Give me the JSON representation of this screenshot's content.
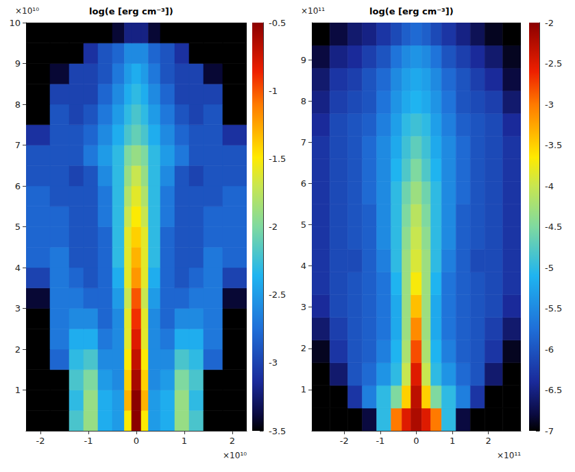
{
  "chart_data": [
    {
      "type": "heatmap",
      "title": "log(e [erg cm⁻³])",
      "x_multiplier": "×10¹⁰",
      "y_multiplier": "×10¹⁰",
      "xlim": [
        -2.3,
        2.3
      ],
      "xticks": [
        -2,
        -1,
        0,
        1,
        2
      ],
      "ylim": [
        0,
        10
      ],
      "yticks": [
        1,
        2,
        3,
        4,
        5,
        6,
        7,
        8,
        9,
        10
      ],
      "x_bins": [
        -2.3,
        -1.8,
        -1.4,
        -1.1,
        -0.8,
        -0.5,
        -0.25,
        -0.1,
        0.1,
        0.25,
        0.5,
        0.8,
        1.1,
        1.4,
        1.8,
        2.3
      ],
      "y_bins": [
        0,
        0.5,
        1,
        1.5,
        2,
        2.5,
        3,
        3.5,
        4,
        4.5,
        5,
        5.5,
        6,
        6.5,
        7,
        7.5,
        8,
        8.5,
        9,
        9.5,
        10
      ],
      "cells": [
        [
          -3.5,
          -3.5,
          -2.2,
          -1.9,
          -2.4,
          -2.5,
          -1.5,
          -0.5,
          -1.5,
          -2.5,
          -2.4,
          -1.9,
          -2.2,
          -3.5,
          -3.5
        ],
        [
          -3.5,
          -3.5,
          -2.3,
          -1.9,
          -2.4,
          -2.5,
          -1.3,
          -0.5,
          -1.3,
          -2.5,
          -2.4,
          -1.9,
          -2.3,
          -3.5,
          -3.5
        ],
        [
          -3.5,
          -3.5,
          -2.2,
          -2.0,
          -2.5,
          -2.6,
          -1.4,
          -0.6,
          -1.4,
          -2.6,
          -2.5,
          -2.0,
          -2.2,
          -3.5,
          -3.5
        ],
        [
          -3.5,
          -2.8,
          -2.3,
          -2.2,
          -2.6,
          -2.6,
          -1.5,
          -0.7,
          -1.5,
          -2.6,
          -2.6,
          -2.2,
          -2.3,
          -2.8,
          -3.5
        ],
        [
          -3.5,
          -2.7,
          -2.4,
          -2.4,
          -2.7,
          -2.6,
          -1.6,
          -0.8,
          -1.6,
          -2.6,
          -2.7,
          -2.4,
          -2.4,
          -2.7,
          -3.5
        ],
        [
          -3.5,
          -2.7,
          -2.6,
          -2.6,
          -2.8,
          -2.6,
          -1.6,
          -0.9,
          -1.6,
          -2.6,
          -2.8,
          -2.6,
          -2.6,
          -2.7,
          -3.5
        ],
        [
          -3.4,
          -2.7,
          -2.7,
          -2.8,
          -2.8,
          -2.5,
          -1.7,
          -1.0,
          -1.7,
          -2.5,
          -2.8,
          -2.8,
          -2.7,
          -2.7,
          -3.4
        ],
        [
          -3.0,
          -2.7,
          -2.8,
          -2.9,
          -2.8,
          -2.4,
          -1.6,
          -1.2,
          -1.6,
          -2.4,
          -2.8,
          -2.9,
          -2.8,
          -2.7,
          -3.0
        ],
        [
          -2.8,
          -2.7,
          -2.9,
          -2.9,
          -2.8,
          -2.3,
          -1.6,
          -1.3,
          -1.6,
          -2.3,
          -2.8,
          -2.9,
          -2.9,
          -2.7,
          -2.8
        ],
        [
          -2.8,
          -2.8,
          -2.9,
          -2.9,
          -2.8,
          -2.3,
          -1.6,
          -1.4,
          -1.6,
          -2.3,
          -2.8,
          -2.9,
          -2.9,
          -2.8,
          -2.8
        ],
        [
          -2.8,
          -2.8,
          -2.9,
          -2.9,
          -2.7,
          -2.3,
          -1.7,
          -1.5,
          -1.7,
          -2.3,
          -2.7,
          -2.9,
          -2.9,
          -2.8,
          -2.8
        ],
        [
          -2.8,
          -2.9,
          -2.9,
          -2.9,
          -2.7,
          -2.3,
          -1.8,
          -1.6,
          -1.8,
          -2.3,
          -2.7,
          -2.9,
          -2.9,
          -2.9,
          -2.8
        ],
        [
          -2.9,
          -2.9,
          -3.0,
          -2.9,
          -2.6,
          -2.3,
          -1.9,
          -1.7,
          -1.9,
          -2.3,
          -2.6,
          -2.9,
          -3.0,
          -2.9,
          -2.9
        ],
        [
          -2.9,
          -2.9,
          -2.9,
          -2.7,
          -2.5,
          -2.3,
          -2.0,
          -1.9,
          -2.0,
          -2.3,
          -2.5,
          -2.7,
          -2.9,
          -2.9,
          -2.9
        ],
        [
          -3.1,
          -2.9,
          -2.9,
          -2.8,
          -2.6,
          -2.4,
          -2.2,
          -2.1,
          -2.2,
          -2.4,
          -2.6,
          -2.8,
          -2.9,
          -2.9,
          -3.1
        ],
        [
          -3.5,
          -2.9,
          -3.0,
          -2.9,
          -2.7,
          -2.5,
          -2.3,
          -2.2,
          -2.3,
          -2.5,
          -2.7,
          -2.9,
          -3.0,
          -2.9,
          -3.5
        ],
        [
          -3.5,
          -3.0,
          -3.0,
          -3.0,
          -2.8,
          -2.6,
          -2.4,
          -2.3,
          -2.4,
          -2.6,
          -2.8,
          -3.0,
          -3.0,
          -3.0,
          -3.5
        ],
        [
          -3.5,
          -3.4,
          -3.0,
          -3.0,
          -2.9,
          -2.7,
          -2.5,
          -2.4,
          -2.5,
          -2.7,
          -2.9,
          -3.0,
          -3.0,
          -3.4,
          -3.5
        ],
        [
          -3.5,
          -3.5,
          -3.5,
          -3.1,
          -2.9,
          -2.8,
          -2.6,
          -2.6,
          -2.6,
          -2.8,
          -2.9,
          -3.1,
          -3.5,
          -3.5,
          -3.5
        ],
        [
          -3.5,
          -3.5,
          -3.5,
          -3.5,
          -3.5,
          -3.4,
          -3.2,
          -3.2,
          -3.2,
          -3.4,
          -3.5,
          -3.5,
          -3.5,
          -3.5,
          -3.5
        ]
      ],
      "colorbar_range": [
        -3.5,
        -0.5
      ],
      "colorbar_ticks": [
        -3.5,
        -3,
        -2.5,
        -2,
        -1.5,
        -1,
        -0.5
      ]
    },
    {
      "type": "heatmap",
      "title": "log(e [erg cm⁻³])",
      "x_multiplier": "×10¹¹",
      "y_multiplier": "×10¹¹",
      "xlim": [
        -2.9,
        2.9
      ],
      "xticks": [
        -2,
        -1,
        0,
        1,
        2
      ],
      "ylim": [
        0,
        9.9
      ],
      "yticks": [
        1,
        2,
        3,
        4,
        5,
        6,
        7,
        8,
        9
      ],
      "x_bins": [
        -2.9,
        -2.4,
        -1.9,
        -1.5,
        -1.1,
        -0.7,
        -0.4,
        -0.15,
        0.15,
        0.4,
        0.7,
        1.1,
        1.5,
        1.9,
        2.4,
        2.9
      ],
      "y_bins": [
        0,
        0.55,
        1.1,
        1.65,
        2.2,
        2.75,
        3.3,
        3.85,
        4.4,
        4.95,
        5.5,
        6.05,
        6.6,
        7.15,
        7.7,
        8.25,
        8.8,
        9.35,
        9.9
      ],
      "cells": [
        [
          -7,
          -7,
          -7,
          -6.8,
          -5.0,
          -3.0,
          -2.5,
          -2.2,
          -2.5,
          -3.0,
          -5.0,
          -6.8,
          -7,
          -7,
          -7
        ],
        [
          -7,
          -7,
          -6.3,
          -5.6,
          -5.0,
          -4.5,
          -3.5,
          -2.3,
          -3.5,
          -4.5,
          -5.0,
          -5.6,
          -6.3,
          -7,
          -7
        ],
        [
          -7,
          -6.6,
          -6.0,
          -5.8,
          -5.4,
          -5.0,
          -4.0,
          -2.5,
          -4.0,
          -5.0,
          -5.4,
          -5.8,
          -6.0,
          -6.6,
          -7
        ],
        [
          -6.9,
          -6.3,
          -6.0,
          -5.9,
          -5.6,
          -5.1,
          -4.2,
          -2.8,
          -4.2,
          -5.1,
          -5.6,
          -5.9,
          -6.0,
          -6.3,
          -6.9
        ],
        [
          -6.6,
          -6.2,
          -6.0,
          -5.9,
          -5.7,
          -5.2,
          -4.3,
          -3.1,
          -4.3,
          -5.2,
          -5.7,
          -5.9,
          -6.0,
          -6.2,
          -6.6
        ],
        [
          -6.4,
          -6.1,
          -6.0,
          -5.9,
          -5.7,
          -5.2,
          -4.3,
          -3.4,
          -4.3,
          -5.2,
          -5.7,
          -5.9,
          -6.0,
          -6.1,
          -6.4
        ],
        [
          -6.3,
          -6.1,
          -6.0,
          -5.9,
          -5.7,
          -5.1,
          -4.3,
          -3.7,
          -4.3,
          -5.1,
          -5.7,
          -5.9,
          -6.0,
          -6.1,
          -6.3
        ],
        [
          -6.3,
          -6.1,
          -6.1,
          -5.9,
          -5.6,
          -5.0,
          -4.3,
          -3.9,
          -4.3,
          -5.0,
          -5.6,
          -5.9,
          -6.1,
          -6.1,
          -6.3
        ],
        [
          -6.3,
          -6.1,
          -6.0,
          -5.9,
          -5.5,
          -5.0,
          -4.4,
          -4.0,
          -4.4,
          -5.0,
          -5.5,
          -5.9,
          -6.0,
          -6.1,
          -6.3
        ],
        [
          -6.3,
          -6.1,
          -6.0,
          -5.9,
          -5.5,
          -5.0,
          -4.5,
          -4.1,
          -4.5,
          -5.0,
          -5.5,
          -5.9,
          -6.0,
          -6.1,
          -6.3
        ],
        [
          -6.3,
          -6.1,
          -6.0,
          -5.8,
          -5.5,
          -5.0,
          -4.6,
          -4.3,
          -4.6,
          -5.0,
          -5.5,
          -5.8,
          -6.0,
          -6.1,
          -6.3
        ],
        [
          -6.3,
          -6.1,
          -6.0,
          -5.8,
          -5.5,
          -5.1,
          -4.8,
          -4.5,
          -4.8,
          -5.1,
          -5.5,
          -5.8,
          -6.0,
          -6.1,
          -6.3
        ],
        [
          -6.3,
          -6.1,
          -6.0,
          -5.8,
          -5.5,
          -5.2,
          -4.9,
          -4.7,
          -4.9,
          -5.2,
          -5.5,
          -5.8,
          -6.0,
          -6.1,
          -6.3
        ],
        [
          -6.4,
          -6.1,
          -6.0,
          -5.9,
          -5.6,
          -5.3,
          -5.0,
          -4.9,
          -5.0,
          -5.3,
          -5.6,
          -5.9,
          -6.0,
          -6.1,
          -6.4
        ],
        [
          -6.5,
          -6.2,
          -6.1,
          -6.0,
          -5.7,
          -5.4,
          -5.2,
          -5.1,
          -5.2,
          -5.4,
          -5.7,
          -6.0,
          -6.1,
          -6.2,
          -6.6
        ],
        [
          -6.6,
          -6.3,
          -6.2,
          -6.0,
          -5.8,
          -5.5,
          -5.3,
          -5.2,
          -5.3,
          -5.5,
          -5.8,
          -6.0,
          -6.2,
          -6.4,
          -6.8
        ],
        [
          -6.8,
          -6.5,
          -6.4,
          -6.2,
          -6.0,
          -5.7,
          -5.5,
          -5.4,
          -5.5,
          -5.7,
          -6.0,
          -6.2,
          -6.4,
          -6.6,
          -6.9
        ],
        [
          -7,
          -6.8,
          -6.6,
          -6.5,
          -6.3,
          -6.1,
          -5.9,
          -5.8,
          -5.9,
          -6.1,
          -6.3,
          -6.5,
          -6.7,
          -6.9,
          -7
        ]
      ],
      "colorbar_range": [
        -7,
        -2
      ],
      "colorbar_ticks": [
        -7,
        -6.5,
        -6,
        -5.5,
        -5,
        -4.5,
        -4,
        -3.5,
        -3,
        -2.5,
        -2
      ]
    }
  ]
}
